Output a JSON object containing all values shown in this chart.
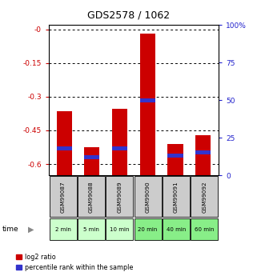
{
  "title": "GDS2578 / 1062",
  "samples": [
    "GSM99087",
    "GSM99088",
    "GSM99089",
    "GSM99090",
    "GSM99091",
    "GSM99092"
  ],
  "time_labels": [
    "2 min",
    "5 min",
    "10 min",
    "20 min",
    "40 min",
    "60 min"
  ],
  "log2_ratio": [
    -0.365,
    -0.525,
    -0.355,
    -0.02,
    -0.51,
    -0.47
  ],
  "percentile_rank": [
    18,
    12,
    18,
    50,
    13,
    15
  ],
  "ylim_left": [
    -0.65,
    0.02
  ],
  "ylim_right": [
    0,
    100
  ],
  "left_ticks": [
    0.0,
    -0.15,
    -0.3,
    -0.45,
    -0.6
  ],
  "right_ticks": [
    0,
    25,
    50,
    75,
    100
  ],
  "left_tick_labels": [
    "-0",
    "-0.15",
    "-0.3",
    "-0.45",
    "-0.6"
  ],
  "right_tick_labels": [
    "0",
    "25",
    "50",
    "75",
    "100%"
  ],
  "bar_color_red": "#cc0000",
  "bar_color_blue": "#3333cc",
  "title_color": "#000000",
  "left_tick_color": "#cc0000",
  "right_tick_color": "#2222cc",
  "bg_plot": "#ffffff",
  "bg_gsm": "#cccccc",
  "bg_time_light": "#ccffcc",
  "bg_time_dark": "#88ee88",
  "bar_width": 0.55,
  "legend_items": [
    "log2 ratio",
    "percentile rank within the sample"
  ]
}
